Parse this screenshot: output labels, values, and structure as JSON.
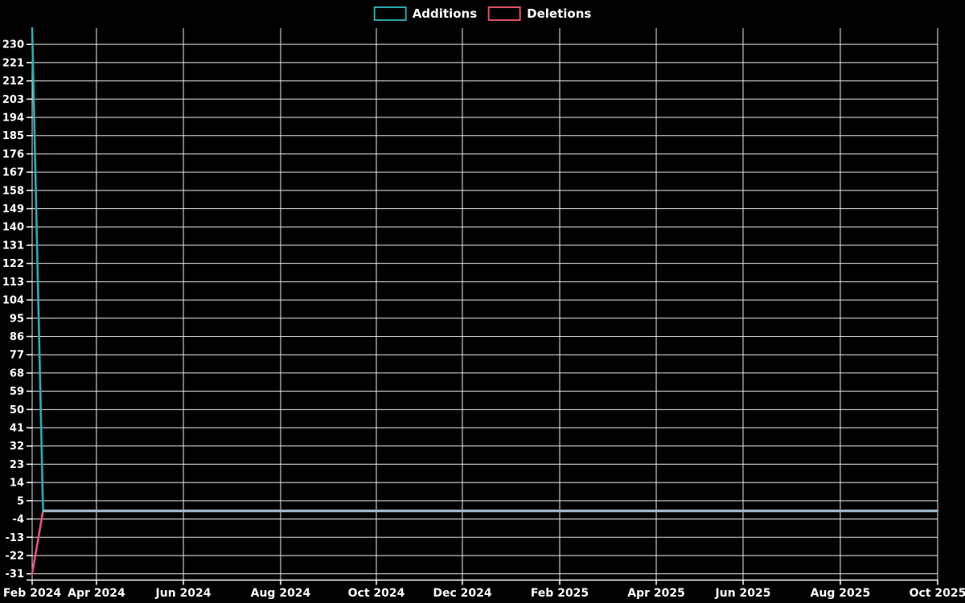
{
  "legend": {
    "items": [
      {
        "label": "Additions",
        "color": "#2aa9ad"
      },
      {
        "label": "Deletions",
        "color": "#e25266"
      }
    ]
  },
  "chart_data": {
    "type": "line",
    "title": "",
    "description": "Weekly additions/deletions frequency chart: a single spike in the first week (Feb 2024), flat at 0 afterwards through Oct 2025.",
    "x_axis": {
      "range_labels": [
        "Feb 2024",
        "Oct 2025"
      ],
      "ticks": [
        {
          "label": "Feb 2024",
          "f": 0.0
        },
        {
          "label": "Apr 2024",
          "f": 0.071
        },
        {
          "label": "Jun 2024",
          "f": 0.167
        },
        {
          "label": "Aug 2024",
          "f": 0.2744
        },
        {
          "label": "Oct 2024",
          "f": 0.3801
        },
        {
          "label": "Dec 2024",
          "f": 0.4751
        },
        {
          "label": "Feb 2025",
          "f": 0.5826
        },
        {
          "label": "Apr 2025",
          "f": 0.6892
        },
        {
          "label": "Jun 2025",
          "f": 0.7851
        },
        {
          "label": "Aug 2025",
          "f": 0.8925
        },
        {
          "label": "Oct 2025",
          "f": 1.0
        }
      ]
    },
    "y_axis": {
      "min": -34.3,
      "max": 238,
      "tick_step": 9,
      "ticks": [
        230,
        221,
        212,
        203,
        194,
        185,
        176,
        167,
        158,
        149,
        140,
        131,
        122,
        113,
        104,
        95,
        86,
        77,
        68,
        59,
        50,
        41,
        32,
        23,
        14,
        5,
        -4,
        -13,
        -22,
        -31
      ]
    },
    "series": [
      {
        "name": "Additions",
        "color": "#29afb4",
        "points": [
          {
            "f": 0.0,
            "v": 238
          },
          {
            "f": 0.012,
            "v": 0
          },
          {
            "f": 1.0,
            "v": 0
          }
        ]
      },
      {
        "name": "Deletions",
        "color": "#e9537b",
        "points": [
          {
            "f": 0.0,
            "v": -31
          },
          {
            "f": 0.012,
            "v": 0
          },
          {
            "f": 1.0,
            "v": 0
          }
        ]
      }
    ],
    "overlap_segment": {
      "from_f": 0.012,
      "to_f": 1.0,
      "v": 0,
      "color": "#9fb6c3"
    },
    "grid": true,
    "grid_color": "#e9e9e9",
    "axis_color": "#ffffff",
    "background": "#000000",
    "legend_position": "top-center"
  }
}
